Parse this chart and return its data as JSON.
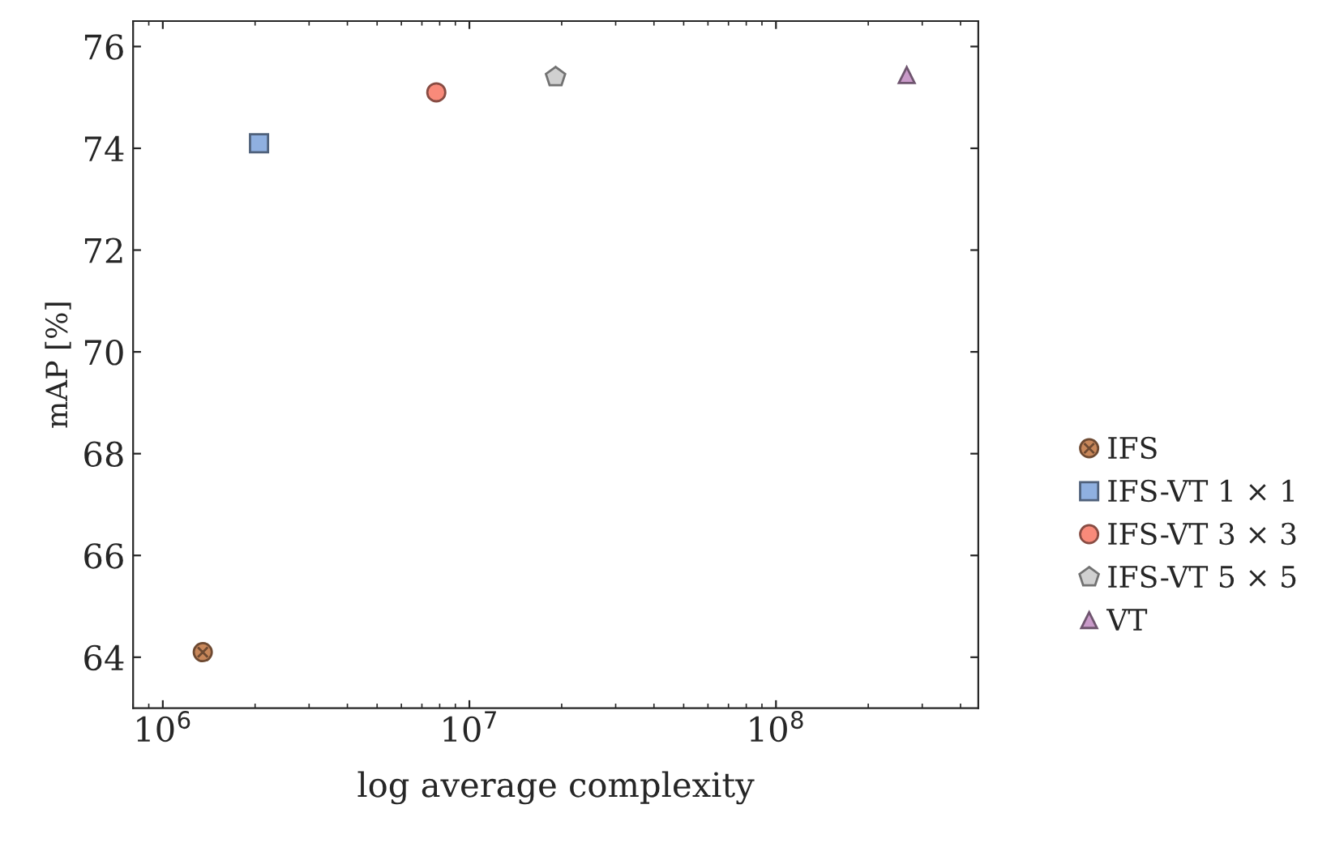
{
  "chart_data": {
    "type": "scatter",
    "xlabel": "log average complexity",
    "ylabel": "mAP [%]",
    "log": "x",
    "xlim": [
      800000,
      457000000
    ],
    "xticks": [
      {
        "value": 1000000,
        "label": "10$^{6}$"
      },
      {
        "value": 10000000,
        "label": "10$^{7}$"
      },
      {
        "value": 100000000,
        "label": "10$^{8}$"
      }
    ],
    "ylim": [
      63,
      76.5
    ],
    "yticks": [
      64,
      66,
      68,
      70,
      72,
      74,
      76
    ],
    "grid": false,
    "legend": "right",
    "series": [
      {
        "name": "IFS",
        "color": "#c8875a",
        "marker": "circle-cross",
        "x": [
          1350000
        ],
        "values": [
          64.1
        ]
      },
      {
        "name": "IFS-VT 1 × 1",
        "color": "#8fb0e0",
        "marker": "square",
        "x": [
          2060000
        ],
        "values": [
          74.1
        ]
      },
      {
        "name": "IFS-VT 3 × 3",
        "color": "#f88a7a",
        "marker": "circle",
        "x": [
          7800000
        ],
        "values": [
          75.1
        ]
      },
      {
        "name": "IFS-VT 5 × 5",
        "color": "#d0d0d0",
        "x": [
          19100000
        ],
        "values": [
          75.4
        ]
      },
      {
        "name": "VT",
        "color": "#c99ac9",
        "marker": "triangle",
        "x": [
          267000000
        ],
        "values": [
          75.44
        ]
      }
    ]
  }
}
